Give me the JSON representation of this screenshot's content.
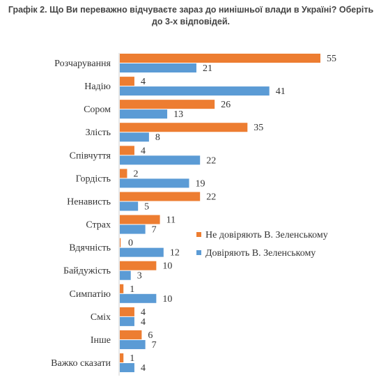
{
  "chart_data": {
    "type": "bar",
    "orientation": "horizontal",
    "title": "Графік 2. Що Ви переважно відчуваєте зараз до нинішньої влади в Україні? Оберіть до 3-х відповідей.",
    "categories": [
      "Розчарування",
      "Надію",
      "Сором",
      "Злість",
      "Співчуття",
      "Гордість",
      "Ненависть",
      "Страх",
      "Вдячність",
      "Байдужість",
      "Симпатію",
      "Сміх",
      "Інше",
      "Важко сказати"
    ],
    "series": [
      {
        "name": "Не довіряють В. Зеленському",
        "color": "#ED7D31",
        "values": [
          55,
          4,
          26,
          35,
          4,
          2,
          22,
          11,
          0,
          10,
          1,
          4,
          6,
          1
        ]
      },
      {
        "name": "Довіряють В. Зеленському",
        "color": "#5B9BD5",
        "values": [
          21,
          41,
          13,
          8,
          22,
          19,
          5,
          7,
          12,
          3,
          10,
          4,
          7,
          4
        ]
      }
    ],
    "xlim": [
      0,
      55
    ],
    "grid": false,
    "legend_position": "right"
  }
}
